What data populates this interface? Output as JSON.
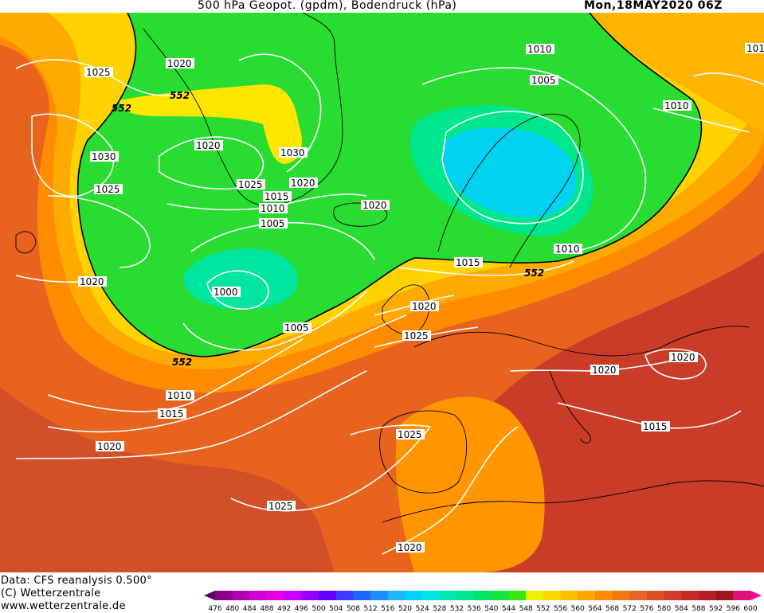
{
  "header": {
    "title": "500 hPa Geopot. (gpdm), Bodendruck (hPa)",
    "date": "Mon,18MAY2020 06Z"
  },
  "footer": {
    "line1": "Data: CFS reanalysis 0.500°",
    "line2": "(C) Wetterzentrale",
    "line3": "www.wetterzentrale.de"
  },
  "legend": {
    "ticks": [
      "476",
      "480",
      "484",
      "488",
      "492",
      "496",
      "500",
      "504",
      "508",
      "512",
      "516",
      "520",
      "524",
      "528",
      "532",
      "536",
      "540",
      "544",
      "548",
      "552",
      "556",
      "560",
      "564",
      "568",
      "572",
      "576",
      "580",
      "584",
      "588",
      "592",
      "596",
      "600"
    ],
    "colors": [
      "#5a005a",
      "#8c008c",
      "#b400b4",
      "#d200d2",
      "#e600e6",
      "#c800ff",
      "#9600ff",
      "#6400ff",
      "#3c3cff",
      "#1e64ff",
      "#1e8cff",
      "#1eb4ff",
      "#00d2ff",
      "#00e6e6",
      "#00e6b4",
      "#00e68c",
      "#00e664",
      "#14e63c",
      "#3ce614",
      "#f0f000",
      "#ffd700",
      "#ffbe00",
      "#ffa500",
      "#ff8c00",
      "#f07814",
      "#e66428",
      "#dc5028",
      "#d23c28",
      "#c82828",
      "#b41e28",
      "#a0141e",
      "#dc1478",
      "#ff00a0"
    ],
    "contour_label_552": "552"
  },
  "isobars": [
    {
      "label": "1025"
    },
    {
      "label": "1020"
    },
    {
      "label": "1030"
    },
    {
      "label": "1025"
    },
    {
      "label": "1020"
    },
    {
      "label": "1030"
    },
    {
      "label": "1025"
    },
    {
      "label": "1020"
    },
    {
      "label": "1015"
    },
    {
      "label": "1010"
    },
    {
      "label": "1005"
    },
    {
      "label": "1020"
    },
    {
      "label": "1010"
    },
    {
      "label": "1005"
    },
    {
      "label": "1010"
    },
    {
      "label": "1010"
    },
    {
      "label": "1015"
    },
    {
      "label": "1000"
    },
    {
      "label": "1005"
    },
    {
      "label": "1020"
    },
    {
      "label": "1025"
    },
    {
      "label": "1020"
    },
    {
      "label": "1020"
    },
    {
      "label": "1010"
    },
    {
      "label": "1015"
    },
    {
      "label": "1020"
    },
    {
      "label": "1025"
    },
    {
      "label": "1025"
    },
    {
      "label": "1015"
    },
    {
      "label": "1020"
    },
    {
      "label": "101"
    }
  ],
  "geo_labels": [
    {
      "label": "552"
    },
    {
      "label": "552"
    },
    {
      "label": "552"
    },
    {
      "label": "552"
    }
  ]
}
